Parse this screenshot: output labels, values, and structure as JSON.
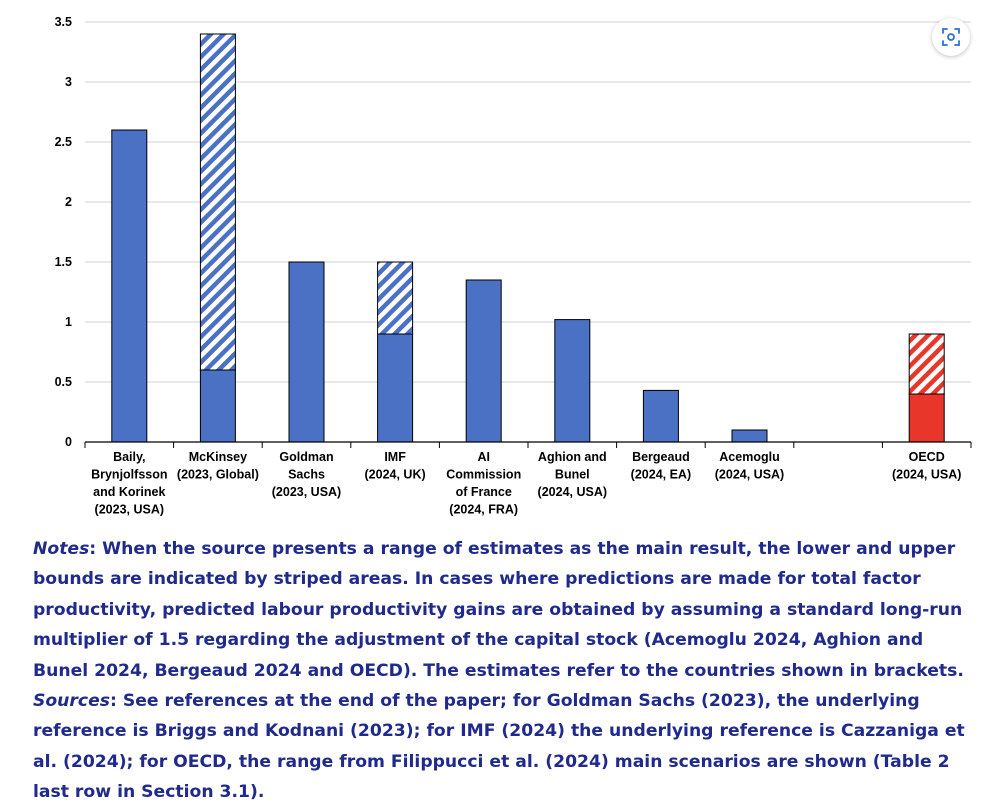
{
  "chart_data": {
    "type": "bar",
    "stacked": true,
    "ylim": [
      0,
      3.5
    ],
    "ytick_values": [
      0,
      0.5,
      1,
      1.5,
      2,
      2.5,
      3,
      3.5
    ],
    "ytick_labels": [
      "0",
      "0.5",
      "1",
      "1.5",
      "2",
      "2.5",
      "3",
      "3.5"
    ],
    "grid": true,
    "categories": [
      {
        "label": [
          "Baily,",
          "Brynjolfsson",
          "and Korinek",
          "(2023, USA)"
        ],
        "lower": 2.6,
        "upper": 2.6,
        "color": "#4a71c4"
      },
      {
        "label": [
          "McKinsey",
          "(2023, Global)"
        ],
        "lower": 0.6,
        "upper": 3.4,
        "color": "#4a71c4"
      },
      {
        "label": [
          "Goldman",
          "Sachs",
          "(2023, USA)"
        ],
        "lower": 1.5,
        "upper": 1.5,
        "color": "#4a71c4"
      },
      {
        "label": [
          "IMF",
          "(2024, UK)"
        ],
        "lower": 0.9,
        "upper": 1.5,
        "color": "#4a71c4"
      },
      {
        "label": [
          "AI",
          "Commission",
          "of France",
          "(2024, FRA)"
        ],
        "lower": 1.35,
        "upper": 1.35,
        "color": "#4a71c4"
      },
      {
        "label": [
          "Aghion and",
          "Bunel",
          "(2024, USA)"
        ],
        "lower": 1.02,
        "upper": 1.02,
        "color": "#4a71c4"
      },
      {
        "label": [
          "Bergeaud",
          "(2024, EA)"
        ],
        "lower": 0.43,
        "upper": 0.43,
        "color": "#4a71c4"
      },
      {
        "label": [
          "Acemoglu",
          "(2024, USA)"
        ],
        "lower": 0.1,
        "upper": 0.1,
        "color": "#4a71c4"
      },
      {
        "label": [],
        "lower": null,
        "upper": null,
        "color": "#4a71c4"
      },
      {
        "label": [
          "OECD",
          "(2024, USA)"
        ],
        "lower": 0.4,
        "upper": 0.9,
        "color": "#e8362a"
      }
    ]
  },
  "notes": {
    "notes_label": "Notes",
    "notes_text": ": When the source presents a range of estimates as the main result, the lower and upper bounds are indicated by striped areas. In cases where predictions are made for total factor productivity, predicted labour productivity gains are obtained by assuming a standard long-run multiplier of 1.5 regarding the adjustment of the capital stock (Acemoglu 2024, Aghion and Bunel 2024, Bergeaud 2024 and OECD). The estimates refer to the countries shown in brackets.",
    "sources_label": "Sources",
    "sources_text": ": See references at the end of the paper; for Goldman Sachs (2023), the underlying reference is Briggs and Kodnani (2023); for IMF (2024) the underlying reference is Cazzaniga et al. (2024); for OECD, the range from Filippucci et al. (2024) main scenarios are shown (Table 2 last row in Section 3.1)."
  },
  "ui": {
    "scan_icon": "scan-icon",
    "accent": "#1f2a8c"
  }
}
